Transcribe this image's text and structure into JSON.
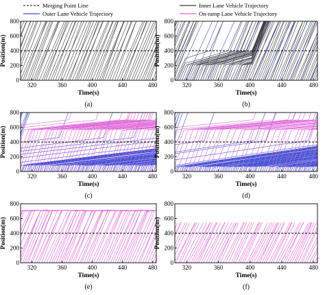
{
  "legend": {
    "merge_line": "Merging Point Line",
    "inner": "Inner Lane Vehicle Trajectory",
    "outer": "Outer Lane Vehicle Trajectory",
    "onramp": "On-ramp Lane Vehicle Trajectory"
  },
  "colors": {
    "inner": "#3a3a3a",
    "outer": "#3a4fd4",
    "onramp": "#e060d8",
    "merge_line": "#000000"
  },
  "chart_data": [
    {
      "type": "line",
      "panel_label": "(a)",
      "xlabel": "Time(s)",
      "ylabel": "Position(m)",
      "xlim": [
        305,
        485
      ],
      "ylim": [
        0,
        800
      ],
      "xticks": [
        "320",
        "360",
        "400",
        "440",
        "480"
      ],
      "yticks": [
        "0",
        "200",
        "400",
        "600",
        "800"
      ],
      "merge_position": 400,
      "series": [
        {
          "lane": "inner",
          "spacing_s": 3.0,
          "speed_mps": 26,
          "congestion": null
        }
      ]
    },
    {
      "type": "line",
      "panel_label": "(b)",
      "xlabel": "Time(s)",
      "ylabel": "Position(m)",
      "xlim": [
        305,
        485
      ],
      "ylim": [
        0,
        800
      ],
      "xticks": [
        "320",
        "360",
        "400",
        "440",
        "480"
      ],
      "yticks": [
        "0",
        "200",
        "400",
        "600",
        "800"
      ],
      "merge_position": 400,
      "series": [
        {
          "lane": "inner",
          "spacing_s": 2.6,
          "speed_mps": 26,
          "congestion": {
            "t_start": 318,
            "t_end": 402,
            "pos_low": 200,
            "pos_high": 400,
            "slow_speed": 3
          }
        },
        {
          "lane": "outer",
          "spacing_s": 12,
          "speed_mps": 26,
          "congestion": null
        }
      ]
    },
    {
      "type": "line",
      "panel_label": "(c)",
      "xlabel": "Time(s)",
      "ylabel": "Position(m)",
      "xlim": [
        305,
        485
      ],
      "ylim": [
        0,
        800
      ],
      "xticks": [
        "320",
        "360",
        "400",
        "440",
        "480"
      ],
      "yticks": [
        "0",
        "200",
        "400",
        "600",
        "800"
      ],
      "merge_position": 400,
      "series": [
        {
          "lane": "outer",
          "spacing_s": 2.2,
          "speed_mps": 30,
          "congestion": {
            "t_start": 305,
            "t_end": 485,
            "pos_low": 80,
            "pos_high": 460,
            "slow_speed": 1.2
          }
        },
        {
          "lane": "onramp",
          "spacing_s": 4.5,
          "speed_mps": 30,
          "congestion": {
            "t_start": 305,
            "t_end": 485,
            "pos_low": 560,
            "pos_high": 700,
            "slow_speed": 1.0
          }
        }
      ]
    },
    {
      "type": "line",
      "panel_label": "(d)",
      "xlabel": "Time(s)",
      "ylabel": "Position(m)",
      "xlim": [
        305,
        485
      ],
      "ylim": [
        0,
        800
      ],
      "xticks": [
        "320",
        "360",
        "400",
        "440",
        "480"
      ],
      "yticks": [
        "0",
        "200",
        "400",
        "600",
        "800"
      ],
      "merge_position": 400,
      "series": [
        {
          "lane": "outer",
          "spacing_s": 2.2,
          "speed_mps": 30,
          "congestion": {
            "t_start": 305,
            "t_end": 485,
            "pos_low": 60,
            "pos_high": 420,
            "slow_speed": 1.5
          }
        },
        {
          "lane": "onramp",
          "spacing_s": 6,
          "speed_mps": 30,
          "congestion": {
            "t_start": 305,
            "t_end": 485,
            "pos_low": 560,
            "pos_high": 700,
            "slow_speed": 1.0
          }
        }
      ]
    },
    {
      "type": "line",
      "panel_label": "(e)",
      "xlabel": "Time(s)",
      "ylabel": "Position(m)",
      "xlim": [
        305,
        485
      ],
      "ylim": [
        0,
        800
      ],
      "xticks": [
        "320",
        "360",
        "400",
        "440",
        "480"
      ],
      "yticks": [
        "0",
        "200",
        "400",
        "600",
        "800"
      ],
      "merge_position": 400,
      "series": [
        {
          "lane": "onramp",
          "spacing_s": 3.0,
          "speed_mps": 24,
          "end_position": 700,
          "plateau_s": 10
        }
      ]
    },
    {
      "type": "line",
      "panel_label": "(f)",
      "xlabel": "Time(s)",
      "ylabel": "Position(m)",
      "xlim": [
        305,
        485
      ],
      "ylim": [
        0,
        800
      ],
      "xticks": [
        "320",
        "360",
        "400",
        "440",
        "480"
      ],
      "yticks": [
        "0",
        "200",
        "400",
        "600",
        "800"
      ],
      "merge_position": 400,
      "series": [
        {
          "lane": "onramp",
          "spacing_s": 3.0,
          "speed_mps": 22,
          "end_position": 540,
          "plateau_s": 0
        }
      ]
    }
  ]
}
